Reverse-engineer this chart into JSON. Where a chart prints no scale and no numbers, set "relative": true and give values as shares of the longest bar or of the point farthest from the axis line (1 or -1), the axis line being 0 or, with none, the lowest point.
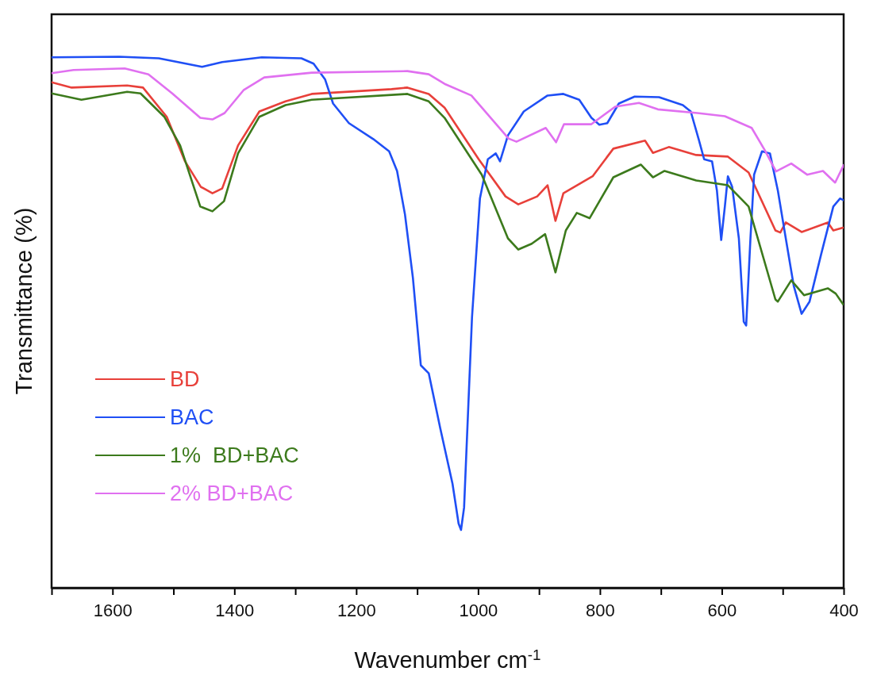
{
  "chart_data": {
    "type": "line",
    "relative": true,
    "xlabel": "Wavenumber cm$^{-1}$",
    "ylabel": "Transmittance (%)",
    "xlim": [
      1700,
      400
    ],
    "xticks": [
      {
        "value": 1700,
        "label": null
      },
      1600,
      {
        "value": 1500,
        "label": null
      },
      1400,
      {
        "value": 1300,
        "label": null
      },
      1200,
      {
        "value": 1100,
        "label": null
      },
      1000,
      {
        "value": 900,
        "label": null
      },
      800,
      {
        "value": 700,
        "label": null
      },
      600,
      {
        "value": 500,
        "label": null
      },
      400
    ],
    "legend": "bottom left",
    "grid": false,
    "marker": "none",
    "line_style": "solid",
    "series": [
      {
        "name": "BD",
        "color": "#e8403a",
        "x": [
          1700,
          1667,
          1576,
          1550,
          1511,
          1481,
          1455,
          1436,
          1420,
          1394,
          1359,
          1316,
          1273,
          1142,
          1116,
          1081,
          1055,
          999,
          955,
          934,
          903,
          886,
          873,
          860,
          812,
          778,
          726,
          713,
          687,
          642,
          590,
          556,
          512,
          504,
          495,
          469,
          426,
          417,
          401
        ],
        "values": [
          0.952,
          0.942,
          0.946,
          0.942,
          0.887,
          0.803,
          0.755,
          0.743,
          0.752,
          0.833,
          0.897,
          0.916,
          0.93,
          0.939,
          0.942,
          0.93,
          0.904,
          0.807,
          0.737,
          0.722,
          0.737,
          0.758,
          0.691,
          0.743,
          0.775,
          0.827,
          0.842,
          0.819,
          0.83,
          0.815,
          0.812,
          0.782,
          0.673,
          0.669,
          0.688,
          0.67,
          0.688,
          0.673,
          0.678
        ]
      },
      {
        "name": "BAC",
        "color": "#1f4ff5",
        "x": [
          1700,
          1589,
          1524,
          1453,
          1420,
          1355,
          1290,
          1270,
          1251,
          1238,
          1212,
          1172,
          1146,
          1133,
          1120,
          1107,
          1094,
          1081,
          1062,
          1042,
          1032,
          1028,
          1023,
          1010,
          997,
          984,
          971,
          964,
          951,
          925,
          886,
          860,
          834,
          814,
          801,
          788,
          769,
          743,
          703,
          664,
          651,
          638,
          629,
          616,
          608,
          601,
          595,
          590,
          583,
          572,
          564,
          560,
          553,
          547,
          534,
          521,
          508,
          495,
          482,
          469,
          456,
          437,
          417,
          406,
          400
        ],
        "values": [
          0.999,
          1.0,
          0.997,
          0.981,
          0.99,
          0.999,
          0.997,
          0.987,
          0.957,
          0.912,
          0.875,
          0.845,
          0.822,
          0.785,
          0.703,
          0.584,
          0.419,
          0.404,
          0.3,
          0.196,
          0.121,
          0.109,
          0.151,
          0.509,
          0.733,
          0.807,
          0.818,
          0.803,
          0.852,
          0.897,
          0.927,
          0.93,
          0.919,
          0.885,
          0.872,
          0.875,
          0.912,
          0.925,
          0.924,
          0.909,
          0.897,
          0.845,
          0.807,
          0.803,
          0.748,
          0.655,
          0.718,
          0.775,
          0.755,
          0.658,
          0.501,
          0.494,
          0.658,
          0.778,
          0.822,
          0.818,
          0.748,
          0.658,
          0.569,
          0.516,
          0.539,
          0.628,
          0.718,
          0.733,
          0.73
        ]
      },
      {
        "name": "1%  BD+BAC",
        "color": "#3c7a1c",
        "x": [
          1700,
          1651,
          1576,
          1554,
          1515,
          1489,
          1456,
          1436,
          1417,
          1394,
          1359,
          1316,
          1273,
          1116,
          1081,
          1055,
          994,
          951,
          934,
          912,
          890,
          873,
          856,
          838,
          817,
          778,
          733,
          713,
          694,
          642,
          590,
          556,
          512,
          508,
          486,
          465,
          426,
          413,
          401
        ],
        "values": [
          0.931,
          0.919,
          0.934,
          0.931,
          0.887,
          0.833,
          0.718,
          0.709,
          0.728,
          0.818,
          0.887,
          0.909,
          0.919,
          0.93,
          0.916,
          0.885,
          0.778,
          0.658,
          0.637,
          0.648,
          0.666,
          0.594,
          0.673,
          0.706,
          0.696,
          0.773,
          0.797,
          0.773,
          0.785,
          0.767,
          0.758,
          0.718,
          0.543,
          0.539,
          0.579,
          0.551,
          0.564,
          0.554,
          0.534
        ]
      },
      {
        "name": "2% BD+BAC",
        "color": "#e070f0",
        "x": [
          1700,
          1664,
          1580,
          1541,
          1502,
          1456,
          1436,
          1416,
          1385,
          1351,
          1273,
          1116,
          1081,
          1055,
          1011,
          950,
          937,
          889,
          872,
          859,
          814,
          775,
          736,
          705,
          640,
          595,
          551,
          530,
          511,
          486,
          460,
          434,
          414,
          400
        ],
        "values": [
          0.969,
          0.975,
          0.978,
          0.967,
          0.931,
          0.885,
          0.882,
          0.894,
          0.937,
          0.961,
          0.97,
          0.973,
          0.967,
          0.949,
          0.927,
          0.846,
          0.84,
          0.866,
          0.839,
          0.873,
          0.873,
          0.906,
          0.913,
          0.901,
          0.894,
          0.888,
          0.866,
          0.825,
          0.784,
          0.799,
          0.778,
          0.785,
          0.763,
          0.796
        ]
      }
    ]
  }
}
